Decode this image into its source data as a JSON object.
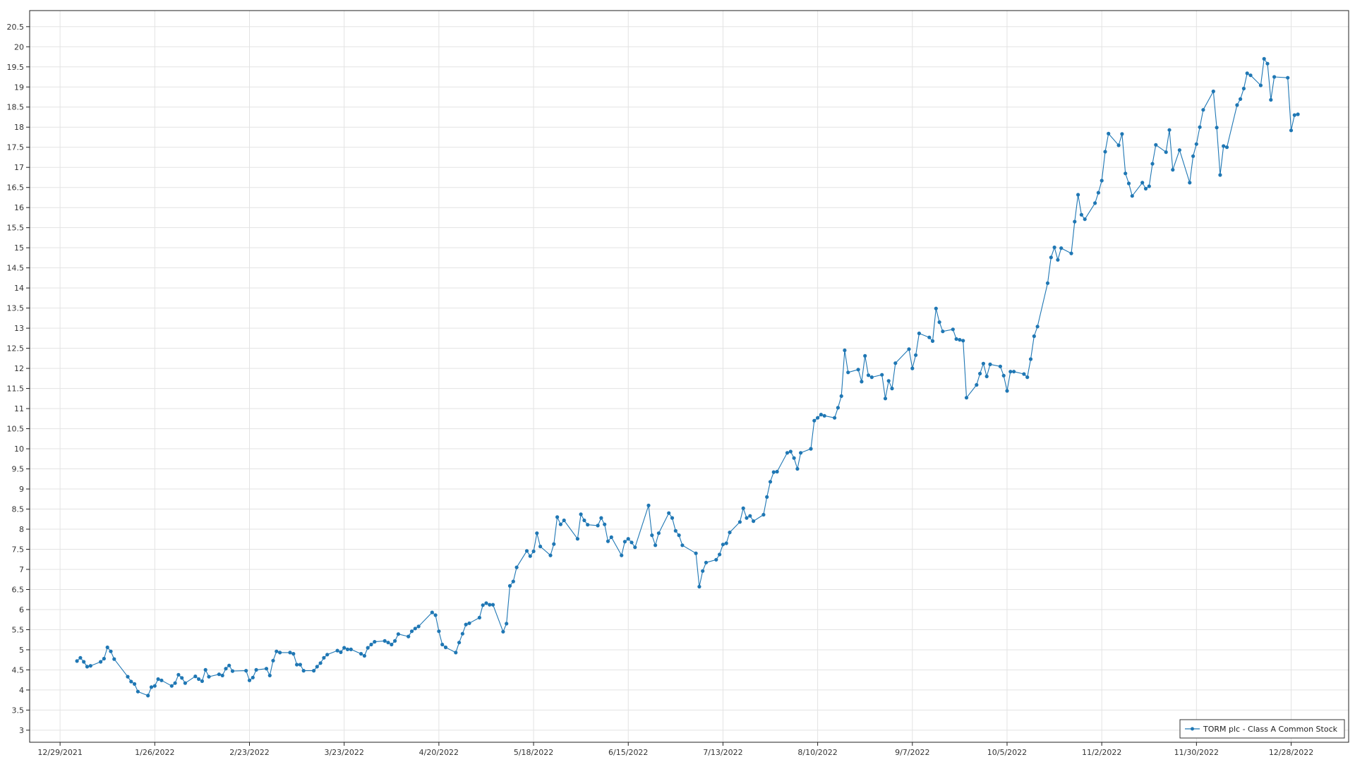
{
  "colors": {
    "series": "#1f77b4",
    "grid": "#e3e3e3",
    "axis": "#222222",
    "background": "#ffffff"
  },
  "chart_data": {
    "type": "line",
    "title": "",
    "xlabel": "",
    "ylabel": "",
    "grid": true,
    "legend_position": "bottom-right",
    "ylim": [
      2.7,
      20.9
    ],
    "xlim": [
      "2021-12-20",
      "2023-01-14"
    ],
    "y_ticks": [
      3,
      3.5,
      4,
      4.5,
      5,
      5.5,
      6,
      6.5,
      7,
      7.5,
      8,
      8.5,
      9,
      9.5,
      10,
      10.5,
      11,
      11.5,
      12,
      12.5,
      13,
      13.5,
      14,
      14.5,
      15,
      15.5,
      16,
      16.5,
      17,
      17.5,
      18,
      18.5,
      19,
      19.5,
      20,
      20.5
    ],
    "y_tick_labels": [
      "3",
      "3.5",
      "4",
      "4.5",
      "5",
      "5.5",
      "6",
      "6.5",
      "7",
      "7.5",
      "8",
      "8.5",
      "9",
      "9.5",
      "10",
      "10.5",
      "11",
      "11.5",
      "12",
      "12.5",
      "13",
      "13.5",
      "14",
      "14.5",
      "15",
      "15.5",
      "16",
      "16.5",
      "17",
      "17.5",
      "18",
      "18.5",
      "19",
      "19.5",
      "20",
      "20.5"
    ],
    "x_ticks": [
      "2021-12-29",
      "2022-01-26",
      "2022-02-23",
      "2022-03-23",
      "2022-04-20",
      "2022-05-18",
      "2022-06-15",
      "2022-07-13",
      "2022-08-10",
      "2022-09-07",
      "2022-10-05",
      "2022-11-02",
      "2022-11-30",
      "2022-12-28"
    ],
    "x_tick_labels": [
      "12/29/2021",
      "1/26/2022",
      "2/23/2022",
      "3/23/2022",
      "4/20/2022",
      "5/18/2022",
      "6/15/2022",
      "7/13/2022",
      "8/10/2022",
      "9/7/2022",
      "10/5/2022",
      "11/2/2022",
      "11/30/2022",
      "12/28/2022"
    ],
    "series": [
      {
        "name": "TORM plc - Class A Common Stock",
        "points": [
          [
            "2022-01-03",
            4.72
          ],
          [
            "2022-01-04",
            4.8
          ],
          [
            "2022-01-05",
            4.7
          ],
          [
            "2022-01-06",
            4.58
          ],
          [
            "2022-01-07",
            4.6
          ],
          [
            "2022-01-10",
            4.7
          ],
          [
            "2022-01-11",
            4.78
          ],
          [
            "2022-01-12",
            5.06
          ],
          [
            "2022-01-13",
            4.96
          ],
          [
            "2022-01-14",
            4.77
          ],
          [
            "2022-01-18",
            4.33
          ],
          [
            "2022-01-19",
            4.21
          ],
          [
            "2022-01-20",
            4.15
          ],
          [
            "2022-01-21",
            3.96
          ],
          [
            "2022-01-24",
            3.86
          ],
          [
            "2022-01-25",
            4.07
          ],
          [
            "2022-01-26",
            4.1
          ],
          [
            "2022-01-27",
            4.27
          ],
          [
            "2022-01-28",
            4.24
          ],
          [
            "2022-01-31",
            4.1
          ],
          [
            "2022-02-01",
            4.17
          ],
          [
            "2022-02-02",
            4.38
          ],
          [
            "2022-02-03",
            4.3
          ],
          [
            "2022-02-04",
            4.17
          ],
          [
            "2022-02-07",
            4.34
          ],
          [
            "2022-02-08",
            4.27
          ],
          [
            "2022-02-09",
            4.22
          ],
          [
            "2022-02-10",
            4.5
          ],
          [
            "2022-02-11",
            4.33
          ],
          [
            "2022-02-14",
            4.39
          ],
          [
            "2022-02-15",
            4.36
          ],
          [
            "2022-02-16",
            4.53
          ],
          [
            "2022-02-17",
            4.61
          ],
          [
            "2022-02-18",
            4.47
          ],
          [
            "2022-02-22",
            4.48
          ],
          [
            "2022-02-23",
            4.24
          ],
          [
            "2022-02-24",
            4.31
          ],
          [
            "2022-02-25",
            4.5
          ],
          [
            "2022-02-28",
            4.53
          ],
          [
            "2022-03-01",
            4.36
          ],
          [
            "2022-03-02",
            4.73
          ],
          [
            "2022-03-03",
            4.96
          ],
          [
            "2022-03-04",
            4.93
          ],
          [
            "2022-03-07",
            4.93
          ],
          [
            "2022-03-08",
            4.9
          ],
          [
            "2022-03-09",
            4.63
          ],
          [
            "2022-03-10",
            4.63
          ],
          [
            "2022-03-11",
            4.48
          ],
          [
            "2022-03-14",
            4.48
          ],
          [
            "2022-03-15",
            4.58
          ],
          [
            "2022-03-16",
            4.67
          ],
          [
            "2022-03-17",
            4.8
          ],
          [
            "2022-03-18",
            4.88
          ],
          [
            "2022-03-21",
            4.98
          ],
          [
            "2022-03-22",
            4.94
          ],
          [
            "2022-03-23",
            5.05
          ],
          [
            "2022-03-24",
            5.01
          ],
          [
            "2022-03-25",
            5.01
          ],
          [
            "2022-03-28",
            4.9
          ],
          [
            "2022-03-29",
            4.85
          ],
          [
            "2022-03-30",
            5.05
          ],
          [
            "2022-03-31",
            5.13
          ],
          [
            "2022-04-01",
            5.2
          ],
          [
            "2022-04-04",
            5.22
          ],
          [
            "2022-04-05",
            5.18
          ],
          [
            "2022-04-06",
            5.13
          ],
          [
            "2022-04-07",
            5.22
          ],
          [
            "2022-04-08",
            5.39
          ],
          [
            "2022-04-11",
            5.33
          ],
          [
            "2022-04-12",
            5.46
          ],
          [
            "2022-04-13",
            5.53
          ],
          [
            "2022-04-14",
            5.58
          ],
          [
            "2022-04-18",
            5.93
          ],
          [
            "2022-04-19",
            5.86
          ],
          [
            "2022-04-20",
            5.46
          ],
          [
            "2022-04-21",
            5.13
          ],
          [
            "2022-04-22",
            5.06
          ],
          [
            "2022-04-25",
            4.93
          ],
          [
            "2022-04-26",
            5.18
          ],
          [
            "2022-04-27",
            5.4
          ],
          [
            "2022-04-28",
            5.63
          ],
          [
            "2022-04-29",
            5.66
          ],
          [
            "2022-05-02",
            5.8
          ],
          [
            "2022-05-03",
            6.11
          ],
          [
            "2022-05-04",
            6.16
          ],
          [
            "2022-05-05",
            6.12
          ],
          [
            "2022-05-06",
            6.12
          ],
          [
            "2022-05-09",
            5.45
          ],
          [
            "2022-05-10",
            5.65
          ],
          [
            "2022-05-11",
            6.59
          ],
          [
            "2022-05-12",
            6.7
          ],
          [
            "2022-05-13",
            7.05
          ],
          [
            "2022-05-16",
            7.46
          ],
          [
            "2022-05-17",
            7.33
          ],
          [
            "2022-05-18",
            7.45
          ],
          [
            "2022-05-19",
            7.9
          ],
          [
            "2022-05-20",
            7.57
          ],
          [
            "2022-05-23",
            7.35
          ],
          [
            "2022-05-24",
            7.63
          ],
          [
            "2022-05-25",
            8.3
          ],
          [
            "2022-05-26",
            8.12
          ],
          [
            "2022-05-27",
            8.22
          ],
          [
            "2022-05-31",
            7.76
          ],
          [
            "2022-06-01",
            8.37
          ],
          [
            "2022-06-02",
            8.22
          ],
          [
            "2022-06-03",
            8.11
          ],
          [
            "2022-06-06",
            8.09
          ],
          [
            "2022-06-07",
            8.28
          ],
          [
            "2022-06-08",
            8.12
          ],
          [
            "2022-06-09",
            7.7
          ],
          [
            "2022-06-10",
            7.8
          ],
          [
            "2022-06-13",
            7.35
          ],
          [
            "2022-06-14",
            7.69
          ],
          [
            "2022-06-15",
            7.76
          ],
          [
            "2022-06-16",
            7.67
          ],
          [
            "2022-06-17",
            7.55
          ],
          [
            "2022-06-21",
            8.59
          ],
          [
            "2022-06-22",
            7.85
          ],
          [
            "2022-06-23",
            7.6
          ],
          [
            "2022-06-24",
            7.9
          ],
          [
            "2022-06-27",
            8.4
          ],
          [
            "2022-06-28",
            8.28
          ],
          [
            "2022-06-29",
            7.96
          ],
          [
            "2022-06-30",
            7.85
          ],
          [
            "2022-07-01",
            7.6
          ],
          [
            "2022-07-05",
            7.4
          ],
          [
            "2022-07-06",
            6.57
          ],
          [
            "2022-07-07",
            6.96
          ],
          [
            "2022-07-08",
            7.17
          ],
          [
            "2022-07-11",
            7.24
          ],
          [
            "2022-07-12",
            7.37
          ],
          [
            "2022-07-13",
            7.62
          ],
          [
            "2022-07-14",
            7.65
          ],
          [
            "2022-07-15",
            7.92
          ],
          [
            "2022-07-18",
            8.18
          ],
          [
            "2022-07-19",
            8.52
          ],
          [
            "2022-07-20",
            8.28
          ],
          [
            "2022-07-21",
            8.33
          ],
          [
            "2022-07-22",
            8.2
          ],
          [
            "2022-07-25",
            8.36
          ],
          [
            "2022-07-26",
            8.8
          ],
          [
            "2022-07-27",
            9.18
          ],
          [
            "2022-07-28",
            9.42
          ],
          [
            "2022-07-29",
            9.43
          ],
          [
            "2022-08-01",
            9.9
          ],
          [
            "2022-08-02",
            9.93
          ],
          [
            "2022-08-03",
            9.77
          ],
          [
            "2022-08-04",
            9.5
          ],
          [
            "2022-08-05",
            9.9
          ],
          [
            "2022-08-08",
            10.0
          ],
          [
            "2022-08-09",
            10.7
          ],
          [
            "2022-08-10",
            10.77
          ],
          [
            "2022-08-11",
            10.85
          ],
          [
            "2022-08-12",
            10.82
          ],
          [
            "2022-08-15",
            10.77
          ],
          [
            "2022-08-16",
            11.02
          ],
          [
            "2022-08-17",
            11.31
          ],
          [
            "2022-08-18",
            12.45
          ],
          [
            "2022-08-19",
            11.9
          ],
          [
            "2022-08-22",
            11.97
          ],
          [
            "2022-08-23",
            11.67
          ],
          [
            "2022-08-24",
            12.31
          ],
          [
            "2022-08-25",
            11.83
          ],
          [
            "2022-08-26",
            11.78
          ],
          [
            "2022-08-29",
            11.84
          ],
          [
            "2022-08-30",
            11.25
          ],
          [
            "2022-08-31",
            11.69
          ],
          [
            "2022-09-01",
            11.5
          ],
          [
            "2022-09-02",
            12.13
          ],
          [
            "2022-09-06",
            12.48
          ],
          [
            "2022-09-07",
            12.0
          ],
          [
            "2022-09-08",
            12.33
          ],
          [
            "2022-09-09",
            12.87
          ],
          [
            "2022-09-12",
            12.77
          ],
          [
            "2022-09-13",
            12.68
          ],
          [
            "2022-09-14",
            13.49
          ],
          [
            "2022-09-15",
            13.15
          ],
          [
            "2022-09-16",
            12.92
          ],
          [
            "2022-09-19",
            12.97
          ],
          [
            "2022-09-20",
            12.73
          ],
          [
            "2022-09-21",
            12.71
          ],
          [
            "2022-09-22",
            12.69
          ],
          [
            "2022-09-23",
            11.27
          ],
          [
            "2022-09-26",
            11.59
          ],
          [
            "2022-09-27",
            11.87
          ],
          [
            "2022-09-28",
            12.12
          ],
          [
            "2022-09-29",
            11.8
          ],
          [
            "2022-09-30",
            12.1
          ],
          [
            "2022-10-03",
            12.05
          ],
          [
            "2022-10-04",
            11.82
          ],
          [
            "2022-10-05",
            11.44
          ],
          [
            "2022-10-06",
            11.92
          ],
          [
            "2022-10-07",
            11.92
          ],
          [
            "2022-10-10",
            11.86
          ],
          [
            "2022-10-11",
            11.78
          ],
          [
            "2022-10-12",
            12.23
          ],
          [
            "2022-10-13",
            12.8
          ],
          [
            "2022-10-14",
            13.04
          ],
          [
            "2022-10-17",
            14.12
          ],
          [
            "2022-10-18",
            14.76
          ],
          [
            "2022-10-19",
            15.01
          ],
          [
            "2022-10-20",
            14.7
          ],
          [
            "2022-10-21",
            14.99
          ],
          [
            "2022-10-24",
            14.86
          ],
          [
            "2022-10-25",
            15.65
          ],
          [
            "2022-10-26",
            16.32
          ],
          [
            "2022-10-27",
            15.82
          ],
          [
            "2022-10-28",
            15.71
          ],
          [
            "2022-10-31",
            16.11
          ],
          [
            "2022-11-01",
            16.37
          ],
          [
            "2022-11-02",
            16.67
          ],
          [
            "2022-11-03",
            17.39
          ],
          [
            "2022-11-04",
            17.84
          ],
          [
            "2022-11-07",
            17.55
          ],
          [
            "2022-11-08",
            17.83
          ],
          [
            "2022-11-09",
            16.85
          ],
          [
            "2022-11-10",
            16.6
          ],
          [
            "2022-11-11",
            16.29
          ],
          [
            "2022-11-14",
            16.62
          ],
          [
            "2022-11-15",
            16.47
          ],
          [
            "2022-11-16",
            16.53
          ],
          [
            "2022-11-17",
            17.09
          ],
          [
            "2022-11-18",
            17.56
          ],
          [
            "2022-11-21",
            17.38
          ],
          [
            "2022-11-22",
            17.93
          ],
          [
            "2022-11-23",
            16.94
          ],
          [
            "2022-11-25",
            17.43
          ],
          [
            "2022-11-28",
            16.62
          ],
          [
            "2022-11-29",
            17.28
          ],
          [
            "2022-11-30",
            17.58
          ],
          [
            "2022-12-01",
            18.0
          ],
          [
            "2022-12-02",
            18.43
          ],
          [
            "2022-12-05",
            18.89
          ],
          [
            "2022-12-06",
            17.99
          ],
          [
            "2022-12-07",
            16.81
          ],
          [
            "2022-12-08",
            17.53
          ],
          [
            "2022-12-09",
            17.5
          ],
          [
            "2022-12-12",
            18.55
          ],
          [
            "2022-12-13",
            18.7
          ],
          [
            "2022-12-14",
            18.96
          ],
          [
            "2022-12-15",
            19.34
          ],
          [
            "2022-12-16",
            19.29
          ],
          [
            "2022-12-19",
            19.04
          ],
          [
            "2022-12-20",
            19.7
          ],
          [
            "2022-12-21",
            19.58
          ],
          [
            "2022-12-22",
            18.68
          ],
          [
            "2022-12-23",
            19.25
          ],
          [
            "2022-12-27",
            19.23
          ],
          [
            "2022-12-28",
            17.92
          ],
          [
            "2022-12-29",
            18.3
          ],
          [
            "2022-12-30",
            18.32
          ]
        ]
      }
    ]
  }
}
